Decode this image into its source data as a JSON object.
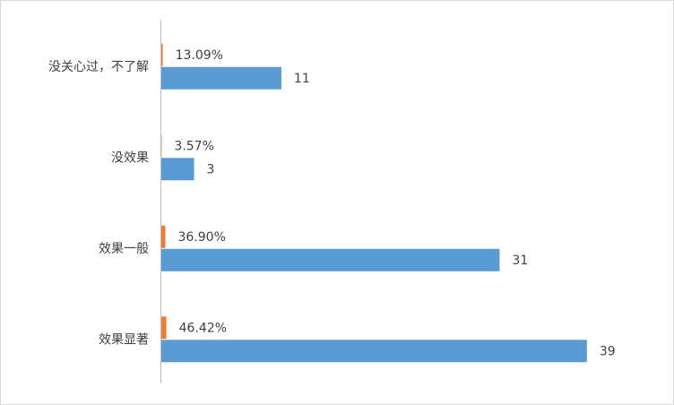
{
  "chart_data": {
    "type": "bar",
    "orientation": "horizontal",
    "categories": [
      "没关心过，不了解",
      "没效果",
      "效果一般",
      "效果显著"
    ],
    "xlim": [
      0,
      40
    ],
    "x2lim": [
      0,
      4000
    ],
    "series": [
      {
        "color": "#ed7d31",
        "axis": "x2",
        "values": [
          13.09,
          3.57,
          36.9,
          46.42
        ],
        "value_labels": [
          "13.09%",
          "3.57%",
          "36.90%",
          "46.42%"
        ]
      },
      {
        "color": "#5b9bd5",
        "values": [
          11,
          3,
          31,
          39
        ]
      }
    ]
  }
}
